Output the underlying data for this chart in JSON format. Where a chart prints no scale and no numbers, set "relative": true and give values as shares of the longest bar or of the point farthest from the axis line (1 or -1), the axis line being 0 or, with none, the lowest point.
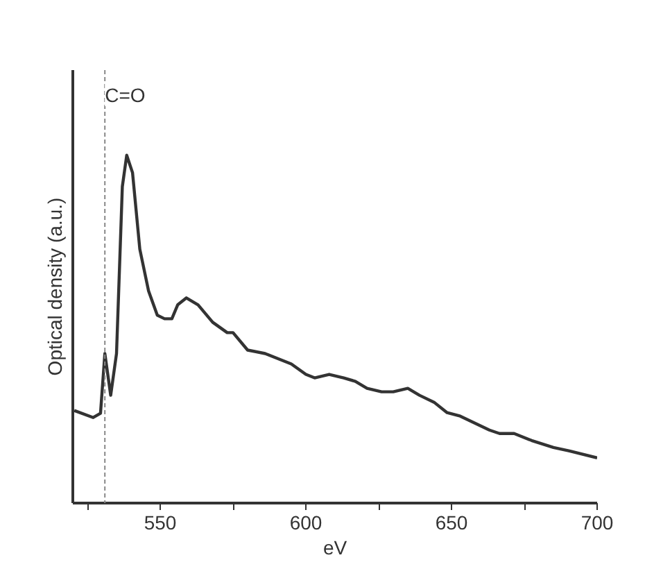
{
  "chart_data": {
    "type": "line",
    "relative": true,
    "xlabel": "eV",
    "ylabel": "Optical density (a.u.)",
    "xlim": [
      520,
      700
    ],
    "xticks": [
      {
        "value": 525,
        "label": null
      },
      550,
      {
        "value": 575,
        "label": null
      },
      600,
      {
        "value": 625,
        "label": null
      },
      650,
      {
        "value": 675,
        "label": null
      },
      700
    ],
    "series": [
      {
        "color": "#333333",
        "x": [
          520.5,
          527,
          529.5,
          531,
          533,
          535,
          537,
          538.5,
          540.5,
          543,
          546,
          549,
          551.5,
          554,
          556,
          559,
          563,
          568,
          573,
          575,
          580,
          586,
          595,
          600,
          603,
          608,
          613,
          617,
          621,
          626,
          630,
          635,
          639,
          644,
          648.5,
          653,
          658,
          663,
          666.5,
          671.5,
          677.5,
          685,
          690.5,
          700
        ],
        "values": [
          0.266,
          0.246,
          0.258,
          0.43,
          0.31,
          0.43,
          0.91,
          1.0,
          0.95,
          0.73,
          0.61,
          0.54,
          0.53,
          0.53,
          0.57,
          0.59,
          0.57,
          0.52,
          0.49,
          0.49,
          0.44,
          0.43,
          0.4,
          0.37,
          0.36,
          0.37,
          0.36,
          0.35,
          0.33,
          0.32,
          0.32,
          0.33,
          0.31,
          0.29,
          0.26,
          0.25,
          0.23,
          0.21,
          0.2,
          0.2,
          0.18,
          0.16,
          0.15,
          0.13
        ]
      }
    ],
    "ref_lines": [
      {
        "axis": "x",
        "value": 531,
        "label": "C=O",
        "color": "#888888",
        "line_style": "dashed"
      }
    ],
    "line_style": "solid"
  }
}
